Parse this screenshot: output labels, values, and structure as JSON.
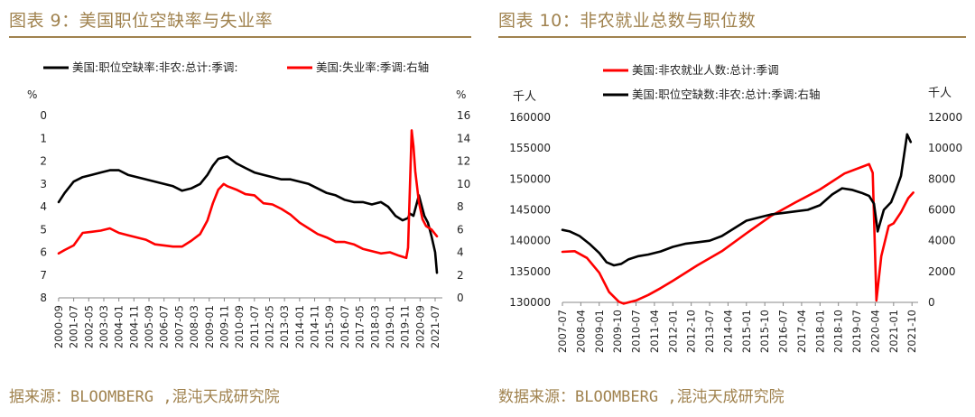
{
  "left": {
    "title": "图表 9：美国职位空缺率与失业率",
    "source": "据来源：BLOOMBERG ,混沌天成研究院",
    "chart_data": {
      "type": "line",
      "left_axis_unit": "%",
      "right_axis_unit": "%",
      "left_ylim": [
        0,
        8
      ],
      "left_inverted": true,
      "left_ticks": [
        "0",
        "1",
        "2",
        "3",
        "4",
        "5",
        "6",
        "7",
        "8"
      ],
      "right_ylim": [
        0,
        16
      ],
      "right_ticks": [
        "0",
        "2",
        "4",
        "6",
        "8",
        "10",
        "12",
        "14",
        "16"
      ],
      "x_ticks": [
        "2000-09",
        "2001-07",
        "2002-05",
        "2003-03",
        "2004-01",
        "2004-11",
        "2005-09",
        "2006-07",
        "2007-05",
        "2008-03",
        "2009-01",
        "2009-11",
        "2010-09",
        "2011-07",
        "2012-05",
        "2013-03",
        "2014-01",
        "2014-11",
        "2015-09",
        "2016-07",
        "2017-05",
        "2018-03",
        "2019-01",
        "2019-11",
        "2020-09",
        "2021-07"
      ],
      "series": [
        {
          "name": "美国:职位空缺率:非农:总计:季调:",
          "color": "#000000",
          "axis": "left",
          "x": [
            2000.67,
            2001.0,
            2001.5,
            2002.0,
            2002.5,
            2003.0,
            2003.5,
            2004.0,
            2004.5,
            2005.0,
            2005.5,
            2006.0,
            2006.5,
            2007.0,
            2007.5,
            2008.0,
            2008.5,
            2008.9,
            2009.2,
            2009.5,
            2010.0,
            2010.5,
            2011.0,
            2011.5,
            2012.0,
            2012.5,
            2013.0,
            2013.5,
            2014.0,
            2014.5,
            2015.0,
            2015.5,
            2016.0,
            2016.5,
            2017.0,
            2017.5,
            2018.0,
            2018.5,
            2018.9,
            2019.3,
            2019.7,
            2020.0,
            2020.1,
            2020.3,
            2020.6,
            2020.9,
            2021.1,
            2021.3,
            2021.5,
            2021.6
          ],
          "y": [
            3.8,
            3.4,
            2.9,
            2.7,
            2.6,
            2.5,
            2.4,
            2.4,
            2.6,
            2.7,
            2.8,
            2.9,
            3.0,
            3.1,
            3.3,
            3.2,
            3.0,
            2.6,
            2.2,
            1.9,
            1.8,
            2.1,
            2.3,
            2.5,
            2.6,
            2.7,
            2.8,
            2.8,
            2.9,
            3.0,
            3.2,
            3.4,
            3.5,
            3.7,
            3.8,
            3.8,
            3.9,
            3.8,
            4.0,
            4.4,
            4.6,
            4.5,
            4.3,
            4.4,
            3.5,
            4.4,
            4.7,
            5.3,
            6.0,
            6.9
          ]
        },
        {
          "name": "美国:失业率:季调:右轴",
          "color": "#ff0000",
          "axis": "right",
          "x": [
            2000.67,
            2001.0,
            2001.5,
            2002.0,
            2002.5,
            2003.0,
            2003.5,
            2004.0,
            2004.5,
            2005.0,
            2005.5,
            2006.0,
            2006.5,
            2007.0,
            2007.5,
            2008.0,
            2008.5,
            2008.9,
            2009.2,
            2009.5,
            2009.8,
            2010.0,
            2010.5,
            2011.0,
            2011.5,
            2012.0,
            2012.5,
            2013.0,
            2013.5,
            2014.0,
            2014.5,
            2015.0,
            2015.5,
            2016.0,
            2016.5,
            2017.0,
            2017.5,
            2018.0,
            2018.5,
            2019.0,
            2019.5,
            2019.9,
            2020.0,
            2020.2,
            2020.3,
            2020.4,
            2020.6,
            2020.8,
            2021.0,
            2021.3,
            2021.6
          ],
          "y": [
            3.9,
            4.2,
            4.6,
            5.7,
            5.8,
            5.9,
            6.1,
            5.7,
            5.5,
            5.3,
            5.1,
            4.7,
            4.6,
            4.5,
            4.5,
            5.0,
            5.6,
            6.8,
            8.3,
            9.5,
            10.0,
            9.8,
            9.5,
            9.1,
            9.0,
            8.3,
            8.2,
            7.8,
            7.3,
            6.6,
            6.1,
            5.6,
            5.3,
            4.9,
            4.9,
            4.7,
            4.3,
            4.1,
            3.9,
            4.0,
            3.7,
            3.5,
            4.4,
            14.7,
            13.3,
            11.1,
            8.4,
            6.9,
            6.3,
            6.0,
            5.4
          ]
        }
      ]
    }
  },
  "right": {
    "title": "图表 10：非农就业总数与职位数",
    "source": "数据来源：BLOOMBERG ,混沌天成研究院",
    "chart_data": {
      "type": "line",
      "left_axis_unit": "千人",
      "right_axis_unit": "千人",
      "left_ylim": [
        130000,
        160000
      ],
      "left_ticks": [
        "130000",
        "135000",
        "140000",
        "145000",
        "150000",
        "155000",
        "160000"
      ],
      "right_ylim": [
        0,
        12000
      ],
      "right_ticks": [
        "0",
        "2000",
        "4000",
        "6000",
        "8000",
        "10000",
        "12000"
      ],
      "x_ticks": [
        "2007-07",
        "2008-04",
        "2009-01",
        "2009-10",
        "2010-07",
        "2011-04",
        "2012-01",
        "2012-10",
        "2013-07",
        "2014-04",
        "2015-01",
        "2015-10",
        "2016-07",
        "2017-04",
        "2018-01",
        "2018-10",
        "2019-07",
        "2020-04",
        "2021-01",
        "2021-10"
      ],
      "series": [
        {
          "name": "美国:非农就业人数:总计:季调",
          "color": "#ff0000",
          "axis": "left",
          "x": [
            2007.5,
            2008.0,
            2008.5,
            2009.0,
            2009.4,
            2009.8,
            2010.0,
            2010.5,
            2011.0,
            2011.5,
            2012.0,
            2013.0,
            2014.0,
            2015.0,
            2016.0,
            2017.0,
            2018.0,
            2019.0,
            2020.0,
            2020.15,
            2020.3,
            2020.5,
            2020.8,
            2021.0,
            2021.3,
            2021.6,
            2021.8
          ],
          "y": [
            138200,
            138300,
            137200,
            134800,
            131700,
            130100,
            129800,
            130300,
            131200,
            132300,
            133500,
            136000,
            138300,
            141200,
            144000,
            146200,
            148300,
            150900,
            152400,
            151000,
            130300,
            137500,
            142400,
            142800,
            144600,
            146900,
            147800
          ]
        },
        {
          "name": "美国:职位空缺数:非农:总计:季调:右轴",
          "color": "#000000",
          "axis": "right",
          "x": [
            2007.5,
            2007.8,
            2008.2,
            2008.6,
            2009.0,
            2009.3,
            2009.6,
            2009.9,
            2010.2,
            2010.6,
            2011.0,
            2011.5,
            2012.0,
            2012.5,
            2013.0,
            2013.5,
            2014.0,
            2014.5,
            2015.0,
            2015.5,
            2016.0,
            2016.5,
            2017.0,
            2017.5,
            2018.0,
            2018.5,
            2018.9,
            2019.3,
            2019.7,
            2020.0,
            2020.2,
            2020.35,
            2020.6,
            2020.9,
            2021.1,
            2021.3,
            2021.55,
            2021.7
          ],
          "y": [
            4700,
            4600,
            4300,
            3800,
            3200,
            2600,
            2400,
            2500,
            2800,
            3000,
            3100,
            3300,
            3600,
            3800,
            3900,
            4000,
            4300,
            4800,
            5300,
            5500,
            5700,
            5800,
            5900,
            6000,
            6300,
            7000,
            7400,
            7300,
            7100,
            6900,
            6400,
            4600,
            6000,
            6500,
            7300,
            8200,
            10900,
            10400
          ]
        }
      ]
    }
  }
}
